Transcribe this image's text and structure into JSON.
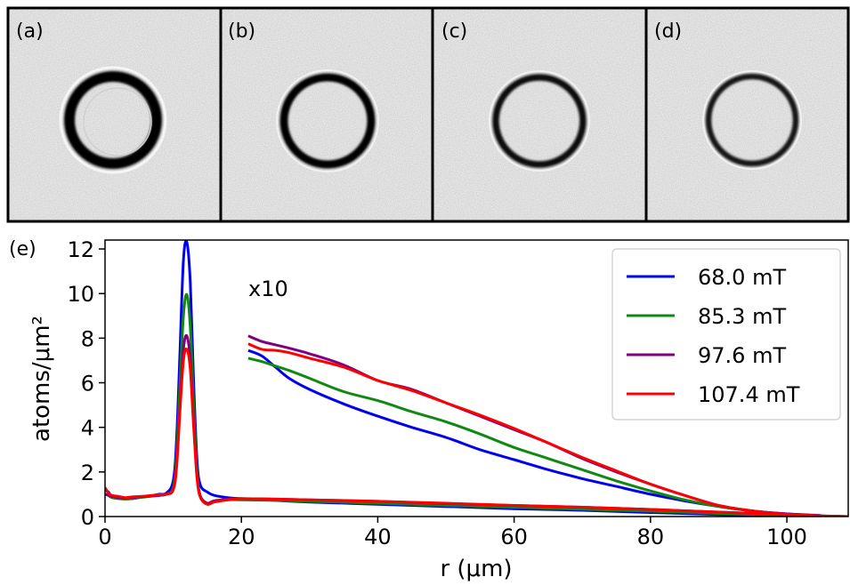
{
  "panels": [
    {
      "label": "(a)",
      "ring_darkness": 1.0,
      "ring_thickness": 1.0
    },
    {
      "label": "(b)",
      "ring_darkness": 0.95,
      "ring_thickness": 0.8
    },
    {
      "label": "(c)",
      "ring_darkness": 0.85,
      "ring_thickness": 0.7
    },
    {
      "label": "(d)",
      "ring_darkness": 0.8,
      "ring_thickness": 0.65
    }
  ],
  "chart_data": {
    "type": "line",
    "panel_label": "(e)",
    "title": "",
    "xlabel": "r (μm)",
    "ylabel": "atoms/μm²",
    "xlim": [
      0,
      109
    ],
    "ylim": [
      0,
      12.4
    ],
    "xticks": [
      0,
      20,
      40,
      60,
      80,
      100
    ],
    "yticks": [
      0,
      2,
      4,
      6,
      8,
      10,
      12
    ],
    "grid": false,
    "legend_position": "top-right",
    "annotation": "x10",
    "series": [
      {
        "name": "68.0 mT",
        "color": "#0000ee",
        "profile": {
          "x": [
            0,
            0.5,
            1,
            2,
            3,
            4,
            5,
            6,
            7,
            8,
            9,
            10,
            10.5,
            11,
            11.5,
            12,
            12.5,
            13,
            13.5,
            14,
            15,
            16,
            18,
            20,
            25,
            30,
            40,
            50,
            60,
            70,
            80,
            90,
            100,
            105,
            109
          ],
          "y": [
            1.2,
            1.1,
            0.9,
            0.85,
            0.8,
            0.8,
            0.85,
            0.9,
            0.95,
            1.0,
            1.05,
            1.6,
            3.5,
            7.5,
            11.5,
            12.3,
            10.5,
            6.0,
            2.5,
            1.4,
            1.1,
            0.95,
            0.85,
            0.8,
            0.72,
            0.65,
            0.55,
            0.45,
            0.35,
            0.28,
            0.18,
            0.09,
            0.03,
            0.02,
            0.0
          ]
        },
        "x10": {
          "x": [
            21,
            23,
            25,
            27,
            30,
            35,
            40,
            45,
            50,
            55,
            60,
            65,
            70,
            75,
            80,
            85,
            90,
            95,
            100,
            105
          ],
          "y": [
            7.45,
            7.2,
            6.7,
            6.2,
            5.7,
            5.05,
            4.5,
            4.0,
            3.55,
            3.0,
            2.55,
            2.1,
            1.7,
            1.35,
            1.0,
            0.7,
            0.45,
            0.25,
            0.12,
            0.05
          ]
        }
      },
      {
        "name": "85.3 mT",
        "color": "#118811",
        "profile": {
          "x": [
            0,
            0.5,
            1,
            2,
            3,
            4,
            5,
            6,
            7,
            8,
            9,
            10,
            10.5,
            11,
            11.5,
            12,
            12.5,
            13,
            13.5,
            14,
            15,
            16,
            18,
            20,
            25,
            30,
            40,
            50,
            60,
            70,
            80,
            90,
            100,
            105,
            109
          ],
          "y": [
            1.0,
            0.95,
            0.85,
            0.8,
            0.78,
            0.8,
            0.85,
            0.88,
            0.92,
            0.95,
            1.0,
            1.3,
            2.8,
            6.0,
            9.0,
            9.95,
            8.5,
            5.0,
            2.0,
            0.9,
            0.55,
            0.65,
            0.75,
            0.75,
            0.72,
            0.68,
            0.6,
            0.5,
            0.42,
            0.33,
            0.24,
            0.14,
            0.05,
            0.03,
            0.0
          ]
        },
        "x10": {
          "x": [
            21,
            23,
            25,
            27,
            30,
            35,
            40,
            45,
            50,
            55,
            60,
            65,
            70,
            75,
            80,
            85,
            90,
            95,
            100,
            105
          ],
          "y": [
            7.1,
            6.95,
            6.75,
            6.55,
            6.2,
            5.6,
            5.2,
            4.7,
            4.25,
            3.7,
            3.1,
            2.6,
            2.1,
            1.6,
            1.15,
            0.75,
            0.45,
            0.25,
            0.1,
            0.03
          ]
        }
      },
      {
        "name": "97.6 mT",
        "color": "#800080",
        "profile": {
          "x": [
            0,
            0.5,
            1,
            2,
            3,
            4,
            5,
            6,
            7,
            8,
            9,
            10,
            10.5,
            11,
            11.5,
            12,
            12.5,
            13,
            13.5,
            14,
            15,
            16,
            18,
            20,
            25,
            30,
            40,
            50,
            60,
            70,
            80,
            90,
            100,
            105,
            109
          ],
          "y": [
            1.0,
            0.95,
            0.9,
            0.85,
            0.82,
            0.85,
            0.88,
            0.9,
            0.92,
            0.95,
            1.0,
            1.2,
            2.4,
            5.0,
            7.5,
            8.1,
            7.0,
            4.2,
            1.8,
            0.9,
            0.6,
            0.7,
            0.78,
            0.8,
            0.78,
            0.75,
            0.68,
            0.58,
            0.5,
            0.42,
            0.32,
            0.2,
            0.08,
            0.03,
            0.0
          ]
        },
        "x10": {
          "x": [
            21,
            23,
            25,
            27,
            30,
            35,
            40,
            45,
            50,
            55,
            60,
            65,
            70,
            75,
            80,
            85,
            90,
            95,
            100,
            105
          ],
          "y": [
            8.1,
            7.85,
            7.7,
            7.55,
            7.3,
            6.8,
            6.1,
            5.7,
            5.1,
            4.5,
            3.9,
            3.3,
            2.6,
            2.0,
            1.45,
            0.95,
            0.5,
            0.25,
            0.12,
            0.04
          ]
        }
      },
      {
        "name": "107.4 mT",
        "color": "#ff0000",
        "profile": {
          "x": [
            0,
            0.5,
            1,
            2,
            3,
            4,
            5,
            6,
            7,
            8,
            9,
            10,
            10.5,
            11,
            11.5,
            12,
            12.5,
            13,
            13.5,
            14,
            15,
            16,
            18,
            20,
            25,
            30,
            40,
            50,
            60,
            70,
            80,
            90,
            100,
            105,
            109
          ],
          "y": [
            1.3,
            1.05,
            0.95,
            0.9,
            0.85,
            0.88,
            0.9,
            0.92,
            0.95,
            0.98,
            1.0,
            1.2,
            2.2,
            4.8,
            7.0,
            7.5,
            6.6,
            4.0,
            1.7,
            0.85,
            0.55,
            0.65,
            0.75,
            0.8,
            0.78,
            0.75,
            0.68,
            0.6,
            0.5,
            0.42,
            0.32,
            0.2,
            0.08,
            0.03,
            0.0
          ]
        },
        "x10": {
          "x": [
            21,
            23,
            25,
            27,
            30,
            35,
            40,
            45,
            50,
            55,
            60,
            65,
            70,
            75,
            80,
            85,
            90,
            95,
            100,
            105
          ],
          "y": [
            7.75,
            7.5,
            7.45,
            7.35,
            7.1,
            6.7,
            6.1,
            5.65,
            5.1,
            4.55,
            3.95,
            3.3,
            2.65,
            2.05,
            1.45,
            0.95,
            0.5,
            0.25,
            0.1,
            0.03
          ]
        }
      }
    ]
  }
}
